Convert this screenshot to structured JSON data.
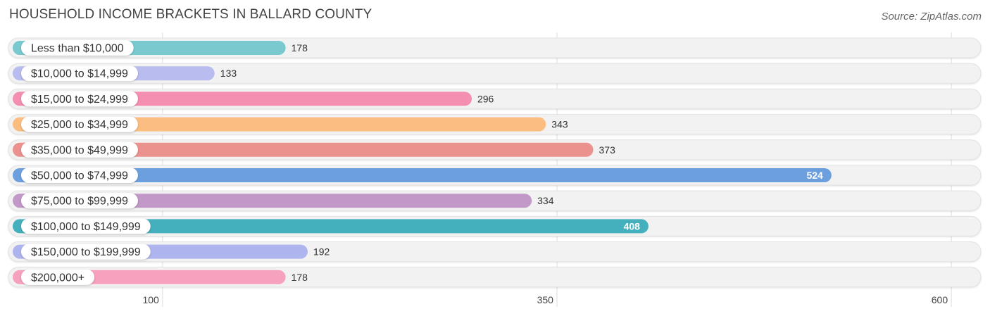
{
  "title": "HOUSEHOLD INCOME BRACKETS IN BALLARD COUNTY",
  "source": "Source: ZipAtlas.com",
  "chart_data": {
    "type": "bar",
    "orientation": "horizontal",
    "title": "HOUSEHOLD INCOME BRACKETS IN BALLARD COUNTY",
    "categories": [
      "Less than $10,000",
      "$10,000 to $14,999",
      "$15,000 to $24,999",
      "$25,000 to $34,999",
      "$35,000 to $49,999",
      "$50,000 to $74,999",
      "$75,000 to $99,999",
      "$100,000 to $149,999",
      "$150,000 to $199,999",
      "$200,000+"
    ],
    "values": [
      178,
      133,
      296,
      343,
      373,
      524,
      334,
      408,
      192,
      178
    ],
    "colors": [
      "#79c9cf",
      "#b8bcee",
      "#f48fb1",
      "#fbbd80",
      "#eb918e",
      "#6c9fdd",
      "#c198c7",
      "#45b0bd",
      "#aeb4ed",
      "#f6a1bd"
    ],
    "x_ticks": [
      100,
      350,
      600
    ],
    "x_tick_labels": [
      "100",
      "350",
      "600"
    ],
    "xlim": [
      5,
      612
    ],
    "grid": true,
    "value_label_inside_bar": [
      false,
      false,
      false,
      false,
      false,
      true,
      false,
      true,
      false,
      false
    ]
  }
}
